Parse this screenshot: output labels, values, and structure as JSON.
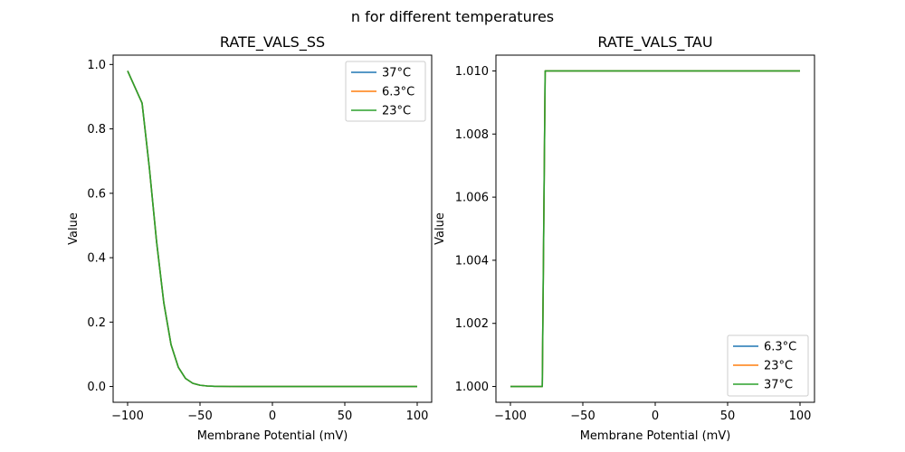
{
  "figure": {
    "suptitle": "n for different temperatures"
  },
  "chart_data": [
    {
      "type": "line",
      "title": "RATE_VALS_SS",
      "xlabel": "Membrane Potential (mV)",
      "ylabel": "Value",
      "xlim": [
        -110,
        110
      ],
      "ylim": [
        -0.049,
        1.029
      ],
      "xticks": [
        -100,
        -50,
        0,
        50,
        100
      ],
      "xtick_labels": [
        "−100",
        "−50",
        "0",
        "50",
        "100"
      ],
      "yticks": [
        0.0,
        0.2,
        0.4,
        0.6,
        0.8,
        1.0
      ],
      "ytick_labels": [
        "0.0",
        "0.2",
        "0.4",
        "0.6",
        "0.8",
        "1.0"
      ],
      "legend_position": "top-right",
      "grid": false,
      "x": [
        -100,
        -90,
        -85,
        -80,
        -75,
        -70,
        -65,
        -60,
        -55,
        -50,
        -45,
        -40,
        -30,
        -20,
        0,
        50,
        100
      ],
      "series": [
        {
          "name": "37°C",
          "color": "#1f77b4",
          "values": [
            0.98,
            0.88,
            0.68,
            0.45,
            0.26,
            0.13,
            0.06,
            0.025,
            0.01,
            0.004,
            0.0015,
            0.0006,
            0.0001,
            0.0,
            0.0,
            0.0,
            0.0
          ]
        },
        {
          "name": "6.3°C",
          "color": "#ff7f0e",
          "values": [
            0.98,
            0.88,
            0.68,
            0.45,
            0.26,
            0.13,
            0.06,
            0.025,
            0.01,
            0.004,
            0.0015,
            0.0006,
            0.0001,
            0.0,
            0.0,
            0.0,
            0.0
          ]
        },
        {
          "name": "23°C",
          "color": "#2ca02c",
          "values": [
            0.98,
            0.88,
            0.68,
            0.45,
            0.26,
            0.13,
            0.06,
            0.025,
            0.01,
            0.004,
            0.0015,
            0.0006,
            0.0001,
            0.0,
            0.0,
            0.0,
            0.0
          ]
        }
      ]
    },
    {
      "type": "line",
      "title": "RATE_VALS_TAU",
      "xlabel": "Membrane Potential (mV)",
      "ylabel": "Value",
      "xlim": [
        -110,
        110
      ],
      "ylim": [
        0.9995,
        1.0105
      ],
      "xticks": [
        -100,
        -50,
        0,
        50,
        100
      ],
      "xtick_labels": [
        "−100",
        "−50",
        "0",
        "50",
        "100"
      ],
      "yticks": [
        1.0,
        1.002,
        1.004,
        1.006,
        1.008,
        1.01
      ],
      "ytick_labels": [
        "1.000",
        "1.002",
        "1.004",
        "1.006",
        "1.008",
        "1.010"
      ],
      "legend_position": "bottom-right",
      "grid": false,
      "x": [
        -100,
        -78,
        -76,
        100
      ],
      "series": [
        {
          "name": "6.3°C",
          "color": "#1f77b4",
          "values": [
            1.0,
            1.0,
            1.01,
            1.01
          ]
        },
        {
          "name": "23°C",
          "color": "#ff7f0e",
          "values": [
            1.0,
            1.0,
            1.01,
            1.01
          ]
        },
        {
          "name": "37°C",
          "color": "#2ca02c",
          "values": [
            1.0,
            1.0,
            1.01,
            1.01
          ]
        }
      ]
    }
  ]
}
